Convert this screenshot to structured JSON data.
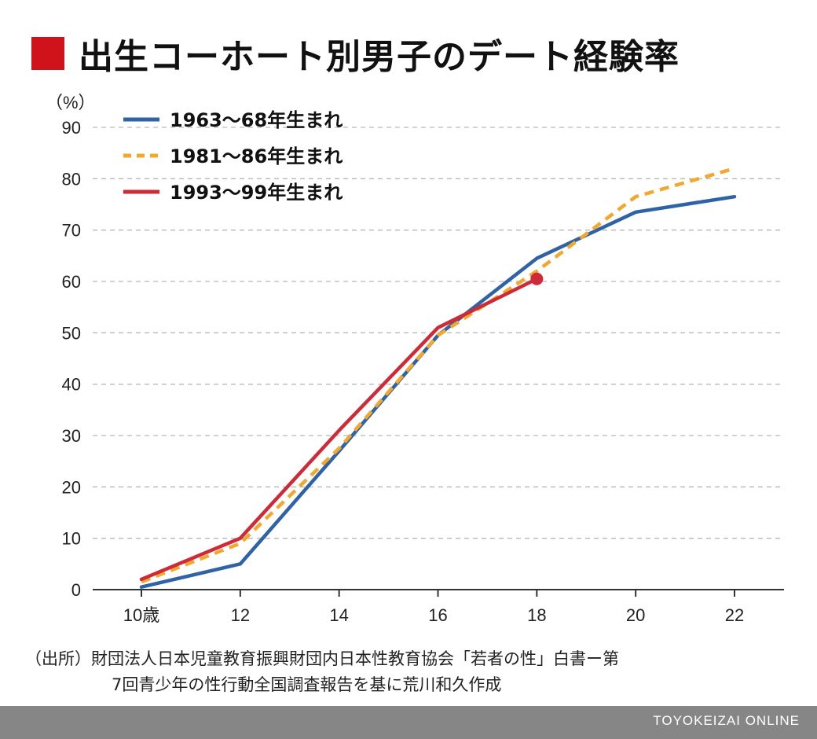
{
  "title": "出生コーホート別男子のデート経験率",
  "colors": {
    "title_square": "#d0121b",
    "footer_bg": "#868686",
    "grid": "#b9b9b9",
    "axis": "#333333"
  },
  "chart_data": {
    "type": "line",
    "unit_label": "（%）",
    "x": [
      10,
      12,
      14,
      16,
      18,
      20,
      22
    ],
    "x_tick_labels": [
      "10歳",
      "12",
      "14",
      "16",
      "18",
      "20",
      "22"
    ],
    "xlim": [
      10,
      22
    ],
    "ylim": [
      0,
      90
    ],
    "y_ticks": [
      0,
      10,
      20,
      30,
      40,
      50,
      60,
      70,
      80,
      90
    ],
    "grid": true,
    "legend_position": "top-left",
    "series": [
      {
        "name": "1963〜68年生まれ",
        "color": "#2f63a6",
        "style": "solid",
        "end_marker": false,
        "values": [
          0.5,
          5,
          27,
          49.5,
          64.5,
          73.5,
          76.5
        ]
      },
      {
        "name": "1981〜86年生まれ",
        "color": "#f2a82e",
        "style": "dashed",
        "end_marker": false,
        "values": [
          1.5,
          9,
          27.5,
          49.5,
          62,
          76.5,
          82
        ]
      },
      {
        "name": "1993〜99年生まれ",
        "color": "#cf2a37",
        "style": "solid",
        "end_marker": true,
        "values": [
          2,
          10,
          31,
          51,
          60.5,
          null,
          null
        ]
      }
    ]
  },
  "source": {
    "line1": "（出所）財団法人日本児童教育振興財団内日本性教育協会「若者の性」白書ー第",
    "line2": "7回青少年の性行動全国調査報告を基に荒川和久作成"
  },
  "footer": {
    "brand": "TOYOKEIZAI ONLINE"
  }
}
